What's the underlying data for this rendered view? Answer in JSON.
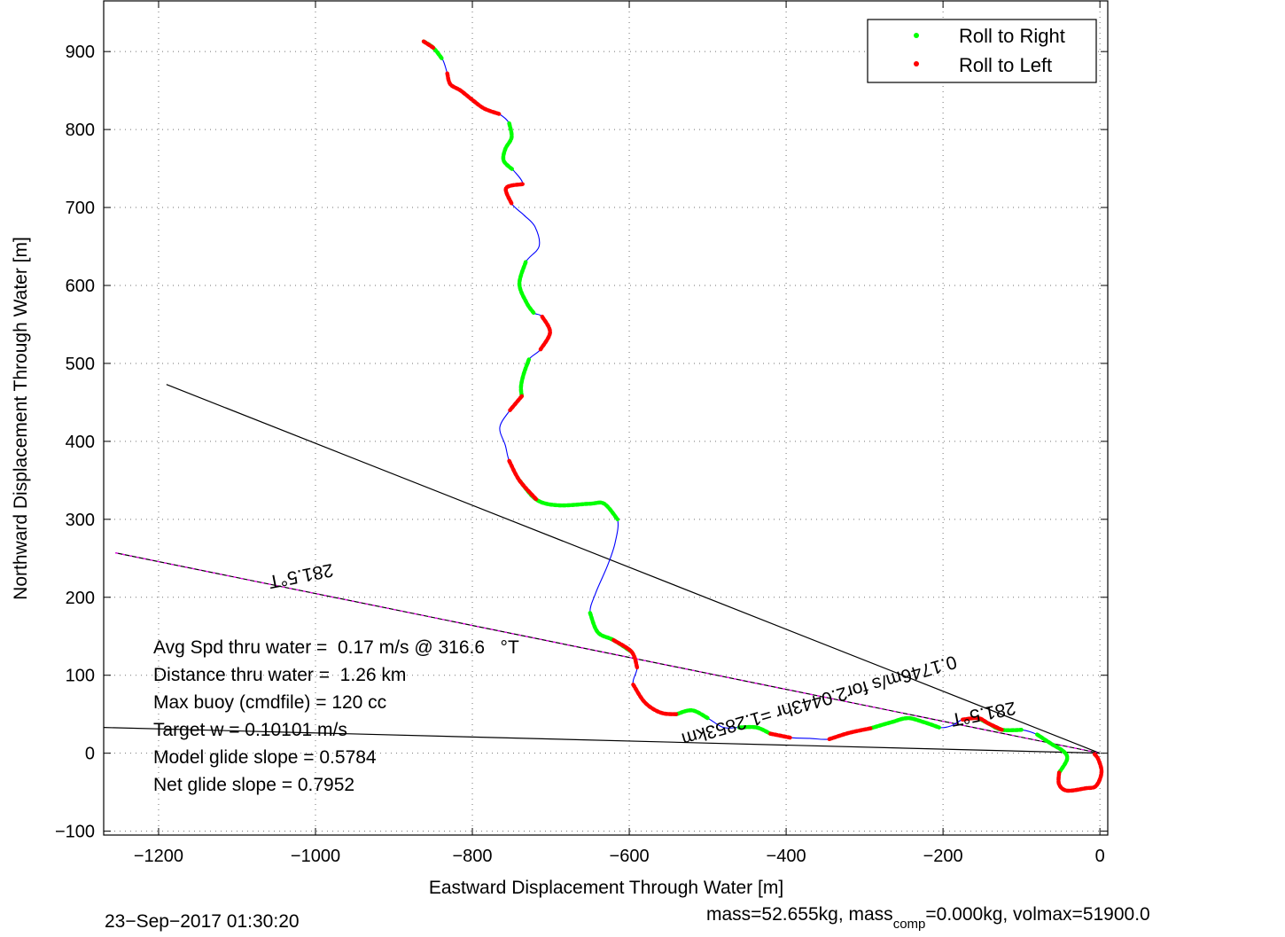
{
  "chart_data": {
    "type": "line",
    "xlabel": "Eastward Displacement Through Water [m]",
    "ylabel": "Northward Displacement Through Water [m]",
    "xlim": [
      -1270,
      10
    ],
    "ylim": [
      -105,
      965
    ],
    "xticks": [
      -1200,
      -1000,
      -800,
      -600,
      -400,
      -200,
      0
    ],
    "yticks": [
      -100,
      0,
      100,
      200,
      300,
      400,
      500,
      600,
      700,
      800,
      900
    ],
    "grid": true,
    "legend_position": "top-right",
    "legend": [
      {
        "label": "Roll to Right",
        "color": "#00ff00"
      },
      {
        "label": "Roll to Left",
        "color": "#ff0000"
      }
    ],
    "track": [
      [
        -862,
        913
      ],
      [
        -850,
        905
      ],
      [
        -838,
        890
      ],
      [
        -832,
        872
      ],
      [
        -828,
        858
      ],
      [
        -815,
        850
      ],
      [
        -800,
        838
      ],
      [
        -785,
        827
      ],
      [
        -766,
        820
      ],
      [
        -753,
        808
      ],
      [
        -750,
        790
      ],
      [
        -758,
        775
      ],
      [
        -760,
        760
      ],
      [
        -748,
        748
      ],
      [
        -736,
        730
      ],
      [
        -757,
        725
      ],
      [
        -750,
        705
      ],
      [
        -734,
        690
      ],
      [
        -720,
        675
      ],
      [
        -715,
        650
      ],
      [
        -732,
        630
      ],
      [
        -740,
        602
      ],
      [
        -731,
        578
      ],
      [
        -722,
        565
      ],
      [
        -711,
        560
      ],
      [
        -701,
        540
      ],
      [
        -713,
        518
      ],
      [
        -728,
        505
      ],
      [
        -735,
        485
      ],
      [
        -738,
        470
      ],
      [
        -737,
        458
      ],
      [
        -752,
        440
      ],
      [
        -765,
        418
      ],
      [
        -758,
        395
      ],
      [
        -753,
        375
      ],
      [
        -740,
        350
      ],
      [
        -718,
        325
      ],
      [
        -690,
        318
      ],
      [
        -650,
        320
      ],
      [
        -632,
        320
      ],
      [
        -615,
        300
      ],
      [
        -618,
        270
      ],
      [
        -628,
        240
      ],
      [
        -643,
        205
      ],
      [
        -650,
        180
      ],
      [
        -640,
        155
      ],
      [
        -620,
        145
      ],
      [
        -597,
        130
      ],
      [
        -590,
        110
      ],
      [
        -595,
        88
      ],
      [
        -580,
        65
      ],
      [
        -560,
        52
      ],
      [
        -540,
        50
      ],
      [
        -520,
        55
      ],
      [
        -500,
        45
      ],
      [
        -480,
        33
      ],
      [
        -460,
        33
      ],
      [
        -438,
        33
      ],
      [
        -420,
        25
      ],
      [
        -395,
        20
      ],
      [
        -370,
        19
      ],
      [
        -345,
        18
      ],
      [
        -320,
        26
      ],
      [
        -292,
        32
      ],
      [
        -265,
        40
      ],
      [
        -245,
        45
      ],
      [
        -225,
        40
      ],
      [
        -205,
        33
      ],
      [
        -190,
        35
      ],
      [
        -175,
        43
      ],
      [
        -155,
        45
      ],
      [
        -142,
        38
      ],
      [
        -125,
        30
      ],
      [
        -100,
        30
      ],
      [
        -80,
        24
      ],
      [
        -62,
        12
      ],
      [
        -46,
        2
      ],
      [
        -42,
        -8
      ],
      [
        -52,
        -25
      ],
      [
        -52,
        -40
      ],
      [
        -42,
        -48
      ],
      [
        -18,
        -45
      ],
      [
        -5,
        -42
      ],
      [
        2,
        -25
      ],
      [
        -2,
        -8
      ],
      [
        -8,
        0
      ]
    ],
    "right_roll_segments": [
      [
        0,
        2
      ],
      [
        9,
        13
      ],
      [
        20,
        23
      ],
      [
        27,
        30
      ],
      [
        35,
        40
      ],
      [
        44,
        47
      ],
      [
        52,
        54
      ],
      [
        56,
        58
      ],
      [
        63,
        67
      ],
      [
        70,
        73
      ],
      [
        74,
        78
      ]
    ],
    "left_roll_segments": [
      [
        0,
        1
      ],
      [
        3,
        8
      ],
      [
        14,
        16
      ],
      [
        24,
        26
      ],
      [
        30,
        31
      ],
      [
        34,
        36
      ],
      [
        46,
        48
      ],
      [
        49,
        52
      ],
      [
        58,
        59
      ],
      [
        61,
        63
      ],
      [
        69,
        72
      ],
      [
        78,
        85
      ]
    ],
    "reference_lines": [
      {
        "from": [
          -1190,
          473
        ],
        "to": [
          0,
          0
        ],
        "color": "#000000"
      },
      {
        "from": [
          -1255,
          257
        ],
        "to": [
          0,
          0
        ],
        "color": "#ff00ff",
        "label": "281.5°T",
        "label_at": [
          -1020,
          235
        ]
      },
      {
        "from": [
          -1270,
          33
        ],
        "to": [
          0,
          0
        ],
        "color": "#000000"
      }
    ],
    "heading_label_2": {
      "text": "281.5°T",
      "at": [
        -150,
        58
      ]
    },
    "current_vector_label": {
      "text": "0.1746m/s for2.0443hr =1.2853km",
      "at": [
        -360,
        75
      ]
    },
    "stats": [
      "Avg Spd thru water =  0.17 m/s @ 316.6   °T",
      "Distance thru water =  1.26 km",
      "Max buoy (cmdfile) = 120 cc",
      "Target w = 0.10101 m/s",
      "Model glide slope = 0.5784",
      "Net glide slope = 0.7952"
    ]
  },
  "footer": {
    "timestamp": "23−Sep−2017 01:30:20",
    "mass_text_a": "mass=52.655kg, mass",
    "mass_text_sub": "comp",
    "mass_text_b": "=0.000kg, volmax=51900.0"
  }
}
